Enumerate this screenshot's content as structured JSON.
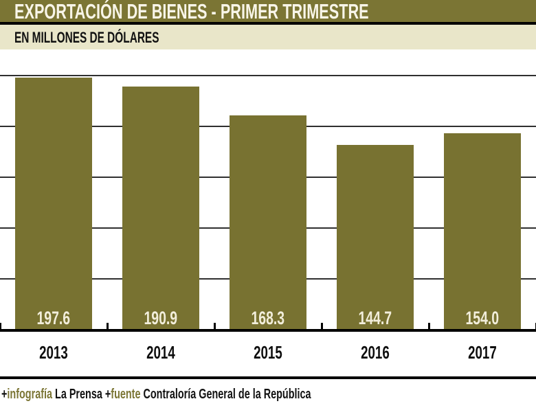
{
  "header": {
    "title": "EXPORTACIÓN DE BIENES - PRIMER TRIMESTRE"
  },
  "subheader": {
    "label": "EN MILLONES DE DÓLARES"
  },
  "footer": {
    "plus1": "+",
    "infografia_label": "infografía",
    "brand_label": " La Prensa ",
    "plus2": "+",
    "fuente_label": "fuente",
    "source_label": " Contraloría General de la República"
  },
  "colors": {
    "header_olive": "#7b7534",
    "bar_olive": "#787231",
    "cream_band": "#e9e6c9",
    "title_text": "#f8f5e8",
    "value_label_text": "#f2eedb",
    "gridline": "#2f2f2f",
    "axis_black": "#000000",
    "accent_text_olive": "#7b7534"
  },
  "chart_data": {
    "type": "bar",
    "title": "EXPORTACIÓN DE BIENES - PRIMER TRIMESTRE",
    "subtitle": "EN MILLONES DE DÓLARES",
    "categories": [
      "2013",
      "2014",
      "2015",
      "2016",
      "2017"
    ],
    "values": [
      197.6,
      190.9,
      168.3,
      144.7,
      154.0
    ],
    "value_labels": [
      "197.6",
      "190.9",
      "168.3",
      "144.7",
      "154.0"
    ],
    "xlabel": "",
    "ylabel": "",
    "ylim": [
      0,
      220
    ],
    "gridline_values": [
      40,
      80,
      120,
      160,
      200
    ],
    "grid": "horizontal-only",
    "legend": "none",
    "value_label_position": "inside-bottom"
  }
}
